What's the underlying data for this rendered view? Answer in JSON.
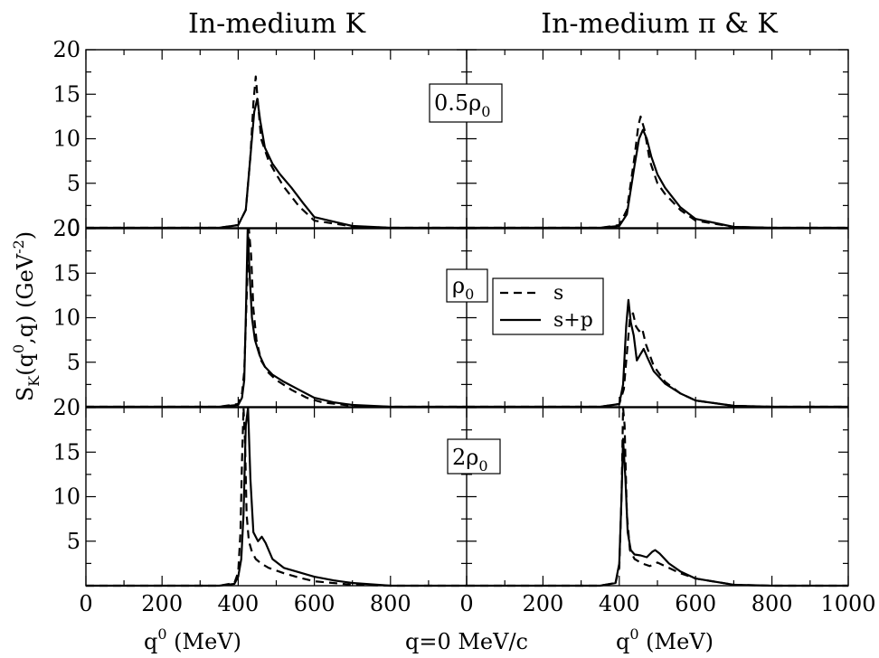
{
  "chart_data": {
    "type": "line",
    "column_titles": [
      "In-medium K",
      "In-medium π & K"
    ],
    "ylabel": {
      "main": "S",
      "sub": "K",
      "mid1": "(q",
      "sup1": "0",
      "mid2": ",q) (GeV",
      "sup2": "-2",
      "end": ")"
    },
    "xlabel": {
      "main": "q",
      "sup": "0",
      "unit": " (MeV)"
    },
    "center_label": "q=0 MeV/c",
    "xlim": [
      0,
      1000
    ],
    "ylim": [
      0,
      20
    ],
    "y_ticks": [
      "0",
      "5",
      "10",
      "15",
      "20"
    ],
    "x_ticks_left": [
      "0",
      "200",
      "400",
      "600",
      "800"
    ],
    "x_ticks_right": [
      "0",
      "200",
      "400",
      "600",
      "800",
      "1000"
    ],
    "legend": [
      {
        "label": "s",
        "style": "dashed"
      },
      {
        "label": "s+p",
        "style": "solid"
      }
    ],
    "rows": [
      {
        "density": {
          "prefix": "0.5ρ",
          "sub": "0"
        },
        "panels": [
          {
            "name": "in-medium-K",
            "series": [
              {
                "name": "s",
                "x": [
                  0,
                  350,
                  400,
                  420,
                  432,
                  440,
                  446,
                  452,
                  460,
                  480,
                  500,
                  520,
                  560,
                  600,
                  700,
                  800,
                  1000
                ],
                "y": [
                  0,
                  0,
                  0.3,
                  2,
                  8,
                  14,
                  17,
                  14,
                  10,
                  7.5,
                  6,
                  4.6,
                  2.4,
                  0.8,
                  0.15,
                  0,
                  0
                ]
              },
              {
                "name": "s+p",
                "x": [
                  0,
                  350,
                  400,
                  420,
                  432,
                  442,
                  450,
                  458,
                  470,
                  490,
                  510,
                  540,
                  570,
                  600,
                  700,
                  800,
                  1000
                ],
                "y": [
                  0,
                  0,
                  0.3,
                  2,
                  8,
                  13,
                  14.5,
                  12,
                  9,
                  7.2,
                  6,
                  4.5,
                  2.8,
                  1.2,
                  0.2,
                  0,
                  0
                ]
              }
            ]
          },
          {
            "name": "in-medium-pi-K",
            "series": [
              {
                "name": "s",
                "x": [
                  0,
                  350,
                  400,
                  420,
                  440,
                  450,
                  456,
                  466,
                  480,
                  500,
                  520,
                  560,
                  600,
                  700,
                  800,
                  1000
                ],
                "y": [
                  0,
                  0,
                  0.3,
                  2,
                  8,
                  11.5,
                  12.5,
                  11,
                  7.5,
                  5,
                  3.8,
                  2,
                  0.8,
                  0.1,
                  0,
                  0
                ]
              },
              {
                "name": "s+p",
                "x": [
                  0,
                  350,
                  400,
                  420,
                  440,
                  452,
                  462,
                  472,
                  484,
                  500,
                  520,
                  560,
                  600,
                  700,
                  800,
                  1000
                ],
                "y": [
                  0,
                  0,
                  0.2,
                  1.5,
                  7,
                  10,
                  11,
                  10,
                  8,
                  6,
                  4.5,
                  2.3,
                  1,
                  0.1,
                  0,
                  0
                ]
              }
            ]
          }
        ]
      },
      {
        "density": {
          "prefix": "ρ",
          "sub": "0"
        },
        "panels": [
          {
            "name": "in-medium-K",
            "series": [
              {
                "name": "s",
                "x": [
                  0,
                  350,
                  400,
                  410,
                  416,
                  422,
                  428,
                  434,
                  440,
                  448,
                  460,
                  480,
                  500,
                  540,
                  580,
                  620,
                  700,
                  800,
                  1000
                ],
                "y": [
                  0,
                  0,
                  0.3,
                  1.5,
                  4,
                  12,
                  20,
                  17,
                  11,
                  7.5,
                  5.2,
                  3.8,
                  3,
                  1.9,
                  1,
                  0.5,
                  0.1,
                  0,
                  0
                ]
              },
              {
                "name": "s+p",
                "x": [
                  0,
                  350,
                  400,
                  410,
                  416,
                  420,
                  425,
                  430,
                  436,
                  444,
                  456,
                  470,
                  490,
                  520,
                  560,
                  600,
                  650,
                  700,
                  800,
                  1000
                ],
                "y": [
                  0,
                  0,
                  0.2,
                  1,
                  3,
                  10,
                  20,
                  15,
                  10,
                  7.5,
                  5.8,
                  4.5,
                  3.6,
                  2.8,
                  1.9,
                  1,
                  0.5,
                  0.2,
                  0,
                  0
                ]
              }
            ]
          },
          {
            "name": "in-medium-pi-K",
            "series": [
              {
                "name": "s",
                "x": [
                  0,
                  350,
                  400,
                  412,
                  420,
                  428,
                  436,
                  444,
                  452,
                  460,
                  470,
                  490,
                  520,
                  560,
                  600,
                  700,
                  800,
                  1000
                ],
                "y": [
                  0,
                  0,
                  0.3,
                  2,
                  6,
                  10,
                  10.5,
                  9,
                  8.5,
                  8.8,
                  7,
                  4.6,
                  2.8,
                  1.5,
                  0.7,
                  0.1,
                  0,
                  0
                ]
              },
              {
                "name": "s+p",
                "x": [
                  0,
                  350,
                  400,
                  410,
                  418,
                  424,
                  430,
                  438,
                  446,
                  454,
                  464,
                  474,
                  490,
                  520,
                  560,
                  600,
                  700,
                  800,
                  1000
                ],
                "y": [
                  0,
                  0,
                  0.3,
                  2.5,
                  9,
                  12,
                  9.5,
                  8,
                  5.2,
                  5.8,
                  6.5,
                  5.5,
                  4,
                  2.6,
                  1.5,
                  0.7,
                  0.1,
                  0,
                  0
                ]
              }
            ]
          }
        ]
      },
      {
        "density": {
          "prefix": "2ρ",
          "sub": "0"
        },
        "panels": [
          {
            "name": "in-medium-K",
            "series": [
              {
                "name": "s",
                "x": [
                  0,
                  350,
                  390,
                  400,
                  406,
                  410,
                  414,
                  418,
                  422,
                  428,
                  436,
                  446,
                  460,
                  480,
                  520,
                  560,
                  600,
                  700,
                  800,
                  1000
                ],
                "y": [
                  0,
                  0,
                  0.3,
                  1.5,
                  6,
                  14,
                  20,
                  16,
                  8,
                  5,
                  3.8,
                  3,
                  2.5,
                  2,
                  1.4,
                  0.9,
                  0.5,
                  0.1,
                  0,
                  0
                ]
              },
              {
                "name": "s+p",
                "x": [
                  0,
                  350,
                  390,
                  400,
                  408,
                  414,
                  420,
                  426,
                  432,
                  440,
                  452,
                  462,
                  472,
                  490,
                  520,
                  560,
                  600,
                  650,
                  700,
                  800,
                  1000
                ],
                "y": [
                  0,
                  0,
                  0.2,
                  1,
                  3,
                  8,
                  18,
                  20,
                  12,
                  6,
                  5,
                  5.5,
                  4.8,
                  3,
                  2,
                  1.5,
                  1,
                  0.6,
                  0.3,
                  0,
                  0
                ]
              }
            ]
          },
          {
            "name": "in-medium-pi-K",
            "series": [
              {
                "name": "s",
                "x": [
                  0,
                  350,
                  390,
                  400,
                  406,
                  410,
                  414,
                  420,
                  428,
                  440,
                  460,
                  480,
                  500,
                  520,
                  560,
                  600,
                  700,
                  800,
                  1000
                ],
                "y": [
                  0,
                  0,
                  0.3,
                  2,
                  10,
                  20,
                  18,
                  8,
                  4,
                  3,
                  2.5,
                  2.2,
                  2.6,
                  2.2,
                  1.4,
                  0.8,
                  0.1,
                  0,
                  0
                ]
              },
              {
                "name": "s+p",
                "x": [
                  0,
                  350,
                  390,
                  400,
                  406,
                  410,
                  416,
                  422,
                  430,
                  440,
                  456,
                  472,
                  486,
                  494,
                  506,
                  530,
                  560,
                  600,
                  700,
                  800,
                  1000
                ],
                "y": [
                  0,
                  0,
                  0.3,
                  2.5,
                  10,
                  16.5,
                  12,
                  6,
                  4,
                  3.5,
                  3.4,
                  3.2,
                  3.8,
                  4,
                  3.6,
                  2.5,
                  1.6,
                  0.8,
                  0.1,
                  0,
                  0
                ]
              }
            ]
          }
        ]
      }
    ]
  }
}
